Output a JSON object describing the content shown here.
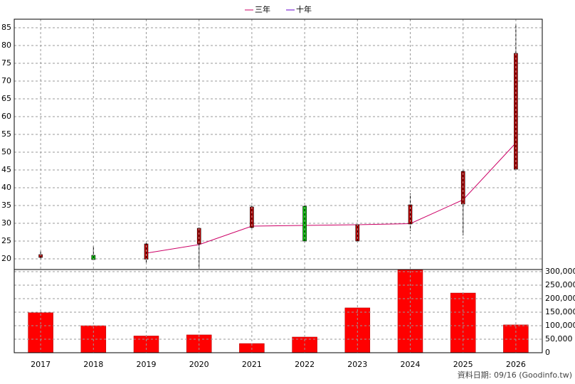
{
  "chart_data": [
    {
      "type": "candlestick",
      "categories": [
        "2017",
        "2018",
        "2019",
        "2020",
        "2021",
        "2022",
        "2023",
        "2024",
        "2025",
        "2026"
      ],
      "open": [
        20.4,
        21,
        19.9,
        24.2,
        28.8,
        34.8,
        25,
        29.8,
        35.4,
        45.2
      ],
      "high": [
        22.2,
        23.6,
        24.4,
        28.8,
        35,
        35,
        29.8,
        38.4,
        45,
        86
      ],
      "low": [
        19.9,
        19.6,
        18.8,
        17.2,
        28.6,
        24.6,
        24.8,
        27.8,
        26.6,
        44.8
      ],
      "close": [
        21.2,
        19.8,
        24.2,
        28.6,
        34.6,
        25,
        29.6,
        35.2,
        44.6,
        77.8
      ],
      "up_color": "#cc0000",
      "down_color": "#00cc00",
      "series": [
        {
          "name": "三年",
          "color": "#cc0066",
          "values": [
            null,
            null,
            21.6,
            24,
            29.2,
            29.4,
            29.6,
            29.9,
            36.6,
            52.6
          ]
        },
        {
          "name": "十年",
          "color": "#6600cc",
          "values": [
            null,
            null,
            null,
            null,
            null,
            null,
            null,
            null,
            null,
            null
          ]
        }
      ],
      "ylim": [
        17,
        87.4
      ],
      "yticks": [
        20,
        25,
        30,
        35,
        40,
        45,
        50,
        55,
        60,
        65,
        70,
        75,
        80,
        85
      ],
      "grid": true,
      "legend": "top"
    },
    {
      "type": "bar",
      "color": "#ff0000",
      "values": [
        148000,
        100000,
        62000,
        66000,
        34000,
        58000,
        166000,
        307000,
        221000,
        103000
      ],
      "ylim": [
        0,
        308000
      ],
      "yticks": [
        0,
        {
          "value": 50000,
          "label": "50,000"
        },
        {
          "value": 100000,
          "label": "100,000"
        },
        {
          "value": 150000,
          "label": "150,000"
        },
        {
          "value": 200000,
          "label": "200,000"
        },
        {
          "value": 250000,
          "label": "250,000"
        },
        {
          "value": 300000,
          "label": "300,000"
        }
      ],
      "grid": true
    }
  ],
  "source": "資料日期: 09/16 (Goodinfo.tw)"
}
